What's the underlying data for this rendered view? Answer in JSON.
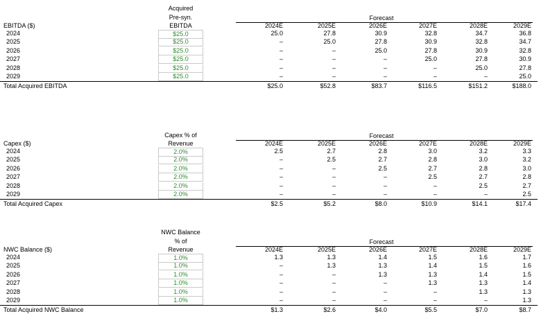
{
  "year_columns": [
    "2024E",
    "2025E",
    "2026E",
    "2027E",
    "2028E",
    "2029E"
  ],
  "forecast_label": "Forecast",
  "sections": [
    {
      "key": "ebitda",
      "input_header": [
        "Acquired",
        "Pre-syn.",
        "EBITDA"
      ],
      "row_header": "EBITDA ($)",
      "rows": [
        {
          "year": "2024",
          "input": "$25.0",
          "values": [
            "25.0",
            "27.8",
            "30.9",
            "32.8",
            "34.7",
            "36.8"
          ]
        },
        {
          "year": "2025",
          "input": "$25.0",
          "values": [
            "–",
            "25.0",
            "27.8",
            "30.9",
            "32.8",
            "34.7"
          ]
        },
        {
          "year": "2026",
          "input": "$25.0",
          "values": [
            "–",
            "–",
            "25.0",
            "27.8",
            "30.9",
            "32.8"
          ]
        },
        {
          "year": "2027",
          "input": "$25.0",
          "values": [
            "–",
            "–",
            "–",
            "25.0",
            "27.8",
            "30.9"
          ]
        },
        {
          "year": "2028",
          "input": "$25.0",
          "values": [
            "–",
            "–",
            "–",
            "–",
            "25.0",
            "27.8"
          ]
        },
        {
          "year": "2029",
          "input": "$25.0",
          "values": [
            "–",
            "–",
            "–",
            "–",
            "–",
            "25.0"
          ]
        }
      ],
      "total_label": "Total Acquired EBITDA",
      "totals": [
        "$25.0",
        "$52.8",
        "$83.7",
        "$116.5",
        "$151.2",
        "$188.0"
      ]
    },
    {
      "key": "capex",
      "input_header": [
        "Capex % of",
        "Revenue"
      ],
      "row_header": "Capex ($)",
      "rows": [
        {
          "year": "2024",
          "input": "2.0%",
          "values": [
            "2.5",
            "2.7",
            "2.8",
            "3.0",
            "3.2",
            "3.3"
          ]
        },
        {
          "year": "2025",
          "input": "2.0%",
          "values": [
            "–",
            "2.5",
            "2.7",
            "2.8",
            "3.0",
            "3.2"
          ]
        },
        {
          "year": "2026",
          "input": "2.0%",
          "values": [
            "–",
            "–",
            "2.5",
            "2.7",
            "2.8",
            "3.0"
          ]
        },
        {
          "year": "2027",
          "input": "2.0%",
          "values": [
            "–",
            "–",
            "–",
            "2.5",
            "2.7",
            "2.8"
          ]
        },
        {
          "year": "2028",
          "input": "2.0%",
          "values": [
            "–",
            "–",
            "–",
            "–",
            "2.5",
            "2.7"
          ]
        },
        {
          "year": "2029",
          "input": "2.0%",
          "values": [
            "–",
            "–",
            "–",
            "–",
            "–",
            "2.5"
          ]
        }
      ],
      "total_label": "Total Acquired Capex",
      "totals": [
        "$2.5",
        "$5.2",
        "$8.0",
        "$10.9",
        "$14.1",
        "$17.4"
      ]
    },
    {
      "key": "nwc",
      "input_header": [
        "NWC Balance",
        "% of",
        "Revenue"
      ],
      "row_header": "NWC Balance ($)",
      "rows": [
        {
          "year": "2024",
          "input": "1.0%",
          "values": [
            "1.3",
            "1.3",
            "1.4",
            "1.5",
            "1.6",
            "1.7"
          ]
        },
        {
          "year": "2025",
          "input": "1.0%",
          "values": [
            "–",
            "1.3",
            "1.3",
            "1.4",
            "1.5",
            "1.6"
          ]
        },
        {
          "year": "2026",
          "input": "1.0%",
          "values": [
            "–",
            "–",
            "1.3",
            "1.3",
            "1.4",
            "1.5"
          ]
        },
        {
          "year": "2027",
          "input": "1.0%",
          "values": [
            "–",
            "–",
            "–",
            "1.3",
            "1.3",
            "1.4"
          ]
        },
        {
          "year": "2028",
          "input": "1.0%",
          "values": [
            "–",
            "–",
            "–",
            "–",
            "1.3",
            "1.3"
          ]
        },
        {
          "year": "2029",
          "input": "1.0%",
          "values": [
            "–",
            "–",
            "–",
            "–",
            "–",
            "1.3"
          ]
        }
      ],
      "total_label": "Total Acquired NWC Balance",
      "totals": [
        "$1.3",
        "$2.6",
        "$4.0",
        "$5.5",
        "$7.0",
        "$8.7"
      ]
    }
  ]
}
